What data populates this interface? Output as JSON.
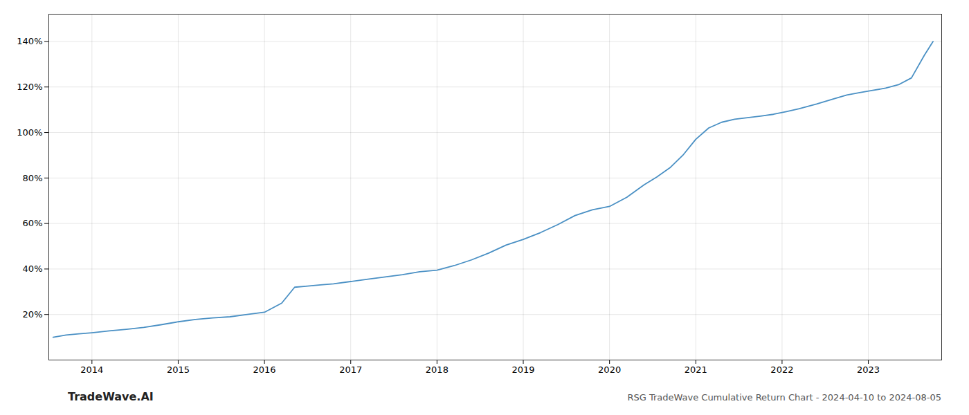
{
  "chart_data": {
    "type": "line",
    "title": "RSG TradeWave Cumulative Return Chart - 2024-04-10 to 2024-08-05",
    "annotations": [
      "TradeWave.AI"
    ],
    "color": "#4a90c4",
    "grid": true,
    "x": [
      2013.55,
      2013.7,
      2013.85,
      2014.0,
      2014.2,
      2014.4,
      2014.6,
      2014.8,
      2015.0,
      2015.2,
      2015.4,
      2015.6,
      2015.8,
      2016.0,
      2016.2,
      2016.35,
      2016.5,
      2016.65,
      2016.8,
      2017.0,
      2017.2,
      2017.4,
      2017.6,
      2017.8,
      2018.0,
      2018.2,
      2018.4,
      2018.6,
      2018.8,
      2019.0,
      2019.2,
      2019.4,
      2019.6,
      2019.8,
      2020.0,
      2020.2,
      2020.4,
      2020.55,
      2020.7,
      2020.85,
      2021.0,
      2021.15,
      2021.3,
      2021.45,
      2021.6,
      2021.75,
      2021.9,
      2022.05,
      2022.2,
      2022.4,
      2022.6,
      2022.75,
      2022.9,
      2023.05,
      2023.2,
      2023.35,
      2023.5,
      2023.65,
      2023.75
    ],
    "values": [
      0.1,
      0.11,
      0.115,
      0.12,
      0.128,
      0.135,
      0.143,
      0.155,
      0.168,
      0.178,
      0.185,
      0.19,
      0.2,
      0.21,
      0.25,
      0.32,
      0.325,
      0.33,
      0.335,
      0.345,
      0.355,
      0.365,
      0.375,
      0.388,
      0.395,
      0.415,
      0.44,
      0.47,
      0.505,
      0.53,
      0.56,
      0.595,
      0.635,
      0.66,
      0.675,
      0.715,
      0.77,
      0.805,
      0.845,
      0.9,
      0.97,
      1.02,
      1.045,
      1.058,
      1.065,
      1.072,
      1.08,
      1.092,
      1.105,
      1.125,
      1.148,
      1.165,
      1.175,
      1.185,
      1.195,
      1.21,
      1.24,
      1.34,
      1.4
    ],
    "xlim": [
      2013.5,
      2023.85
    ],
    "xticks": [
      2014,
      2015,
      2016,
      2017,
      2018,
      2019,
      2020,
      2021,
      2022,
      2023
    ],
    "ylim": [
      0.0,
      1.52
    ],
    "yticks": [
      {
        "value": 0.2,
        "label": "20%"
      },
      {
        "value": 0.4,
        "label": "40%"
      },
      {
        "value": 0.6,
        "label": "60%"
      },
      {
        "value": 0.8,
        "label": "80%"
      },
      {
        "value": 1.0,
        "label": "100%"
      },
      {
        "value": 1.2,
        "label": "120%"
      },
      {
        "value": 1.4,
        "label": "140%"
      }
    ]
  }
}
